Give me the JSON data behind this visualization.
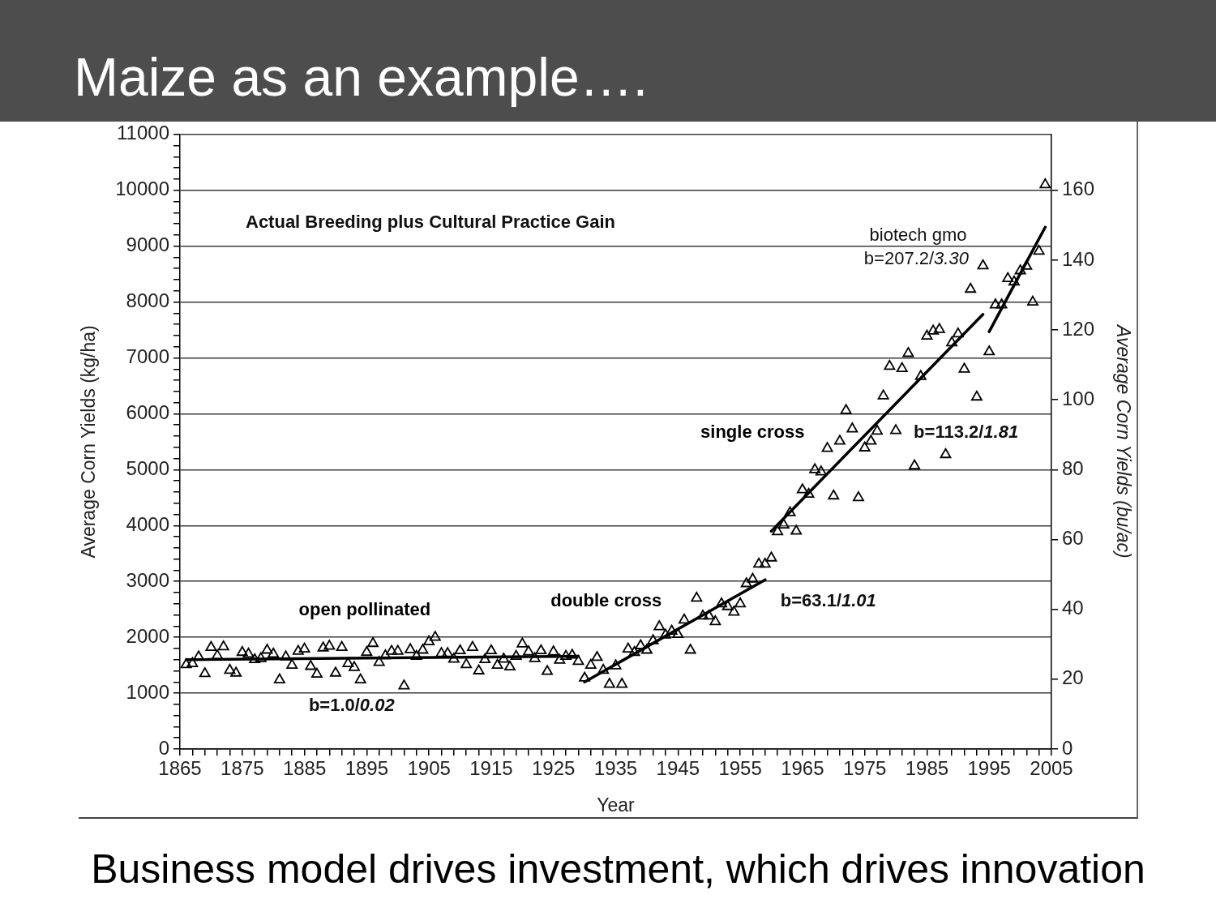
{
  "chart_data": {
    "type": "scatter",
    "title": "Maize as an example….",
    "subtitle": "Actual Breeding plus Cultural Practice Gain",
    "xlabel": "Year",
    "ylabel": "Average Corn Yields (kg/ha)",
    "y2label": "Average Corn Yields (bu/ac)",
    "annotations": [
      "b=1.0/0.02",
      "b=63.1/1.01",
      "b=113.2/1.81",
      "biotech gmo",
      "b=207.2/3.30",
      "Business model drives investment, which drives innovation"
    ],
    "x": [
      1866,
      1867,
      1868,
      1869,
      1870,
      1871,
      1872,
      1873,
      1874,
      1875,
      1876,
      1877,
      1878,
      1879,
      1880,
      1881,
      1882,
      1883,
      1884,
      1885,
      1886,
      1887,
      1888,
      1889,
      1890,
      1891,
      1892,
      1893,
      1894,
      1895,
      1896,
      1897,
      1898,
      1899,
      1900,
      1901,
      1902,
      1903,
      1904,
      1905,
      1906,
      1907,
      1908,
      1909,
      1910,
      1911,
      1912,
      1913,
      1914,
      1915,
      1916,
      1917,
      1918,
      1919,
      1920,
      1921,
      1922,
      1923,
      1924,
      1925,
      1926,
      1927,
      1928,
      1929,
      1930,
      1931,
      1932,
      1933,
      1934,
      1935,
      1936,
      1937,
      1938,
      1939,
      1940,
      1941,
      1942,
      1943,
      1944,
      1945,
      1946,
      1947,
      1948,
      1949,
      1950,
      1951,
      1952,
      1953,
      1954,
      1955,
      1956,
      1957,
      1958,
      1959,
      1960,
      1961,
      1962,
      1963,
      1964,
      1965,
      1966,
      1967,
      1968,
      1969,
      1970,
      1971,
      1972,
      1973,
      1974,
      1975,
      1976,
      1977,
      1978,
      1979,
      1980,
      1981,
      1982,
      1983,
      1984,
      1985,
      1986,
      1987,
      1988,
      1989,
      1990,
      1991,
      1992,
      1993,
      1994,
      1995,
      1996,
      1997,
      1998,
      1999,
      2000,
      2001,
      2002,
      2003,
      2004
    ],
    "series": [
      {
        "color": "#000000",
        "marker": "triangle",
        "values": [
          1510,
          1530,
          1650,
          1350,
          1820,
          1670,
          1830,
          1410,
          1360,
          1730,
          1700,
          1600,
          1620,
          1770,
          1700,
          1240,
          1650,
          1500,
          1750,
          1790,
          1480,
          1340,
          1810,
          1840,
          1360,
          1820,
          1530,
          1460,
          1240,
          1730,
          1890,
          1550,
          1670,
          1750,
          1750,
          1130,
          1780,
          1660,
          1770,
          1920,
          2000,
          1710,
          1710,
          1610,
          1760,
          1510,
          1820,
          1400,
          1600,
          1760,
          1500,
          1610,
          1470,
          1660,
          1880,
          1740,
          1620,
          1760,
          1390,
          1740,
          1590,
          1660,
          1680,
          1570,
          1270,
          1500,
          1640,
          1410,
          1160,
          1490,
          1160,
          1790,
          1730,
          1850,
          1770,
          1940,
          2190,
          2040,
          2110,
          2050,
          2310,
          1770,
          2700,
          2380,
          2380,
          2280,
          2600,
          2550,
          2450,
          2600,
          2960,
          3040,
          3310,
          3310,
          3420,
          3890,
          4010,
          4230,
          3900,
          4640,
          4560,
          5000,
          4960,
          5380,
          4530,
          5510,
          6060,
          5730,
          4500,
          5390,
          5510,
          5690,
          6320,
          6850,
          5700,
          6810,
          7080,
          5070,
          6670,
          7390,
          7480,
          7510,
          5270,
          7270,
          7430,
          6800,
          8230,
          6300,
          8650,
          7110,
          7950,
          7950,
          8420,
          8360,
          8560,
          8640,
          8000,
          8910,
          10100
        ]
      },
      {
        "type": "line",
        "name": "open pollinated",
        "color": "#000000",
        "marker": "none",
        "line_style": "solid",
        "x": [
          1866,
          1929
        ],
        "values": [
          1600,
          1660
        ]
      },
      {
        "type": "line",
        "name": "double cross",
        "color": "#000000",
        "marker": "none",
        "line_style": "solid",
        "x": [
          1930,
          1959
        ],
        "values": [
          1200,
          3030
        ]
      },
      {
        "type": "line",
        "name": "single cross",
        "color": "#000000",
        "marker": "none",
        "line_style": "solid",
        "x": [
          1960,
          1994
        ],
        "values": [
          3900,
          7780
        ]
      },
      {
        "type": "line",
        "color": "#000000",
        "marker": "none",
        "line_style": "solid",
        "x": [
          1995,
          2004
        ],
        "values": [
          7470,
          9340
        ]
      }
    ],
    "xlim": [
      1865,
      2005
    ],
    "xticks": [
      1865,
      {
        "value": 1867,
        "label": null
      },
      {
        "value": 1869,
        "label": null
      },
      {
        "value": 1871,
        "label": null
      },
      {
        "value": 1873,
        "label": null
      },
      1875,
      {
        "value": 1877,
        "label": null
      },
      {
        "value": 1879,
        "label": null
      },
      {
        "value": 1881,
        "label": null
      },
      {
        "value": 1883,
        "label": null
      },
      1885,
      {
        "value": 1887,
        "label": null
      },
      {
        "value": 1889,
        "label": null
      },
      {
        "value": 1891,
        "label": null
      },
      {
        "value": 1893,
        "label": null
      },
      1895,
      {
        "value": 1897,
        "label": null
      },
      {
        "value": 1899,
        "label": null
      },
      {
        "value": 1901,
        "label": null
      },
      {
        "value": 1903,
        "label": null
      },
      1905,
      {
        "value": 1907,
        "label": null
      },
      {
        "value": 1909,
        "label": null
      },
      {
        "value": 1911,
        "label": null
      },
      {
        "value": 1913,
        "label": null
      },
      1915,
      {
        "value": 1917,
        "label": null
      },
      {
        "value": 1919,
        "label": null
      },
      {
        "value": 1921,
        "label": null
      },
      {
        "value": 1923,
        "label": null
      },
      1925,
      {
        "value": 1927,
        "label": null
      },
      {
        "value": 1929,
        "label": null
      },
      {
        "value": 1931,
        "label": null
      },
      {
        "value": 1933,
        "label": null
      },
      1935,
      {
        "value": 1937,
        "label": null
      },
      {
        "value": 1939,
        "label": null
      },
      {
        "value": 1941,
        "label": null
      },
      {
        "value": 1943,
        "label": null
      },
      1945,
      {
        "value": 1947,
        "label": null
      },
      {
        "value": 1949,
        "label": null
      },
      {
        "value": 1951,
        "label": null
      },
      {
        "value": 1953,
        "label": null
      },
      1955,
      {
        "value": 1957,
        "label": null
      },
      {
        "value": 1959,
        "label": null
      },
      {
        "value": 1961,
        "label": null
      },
      {
        "value": 1963,
        "label": null
      },
      1965,
      {
        "value": 1967,
        "label": null
      },
      {
        "value": 1969,
        "label": null
      },
      {
        "value": 1971,
        "label": null
      },
      {
        "value": 1973,
        "label": null
      },
      1975,
      {
        "value": 1977,
        "label": null
      },
      {
        "value": 1979,
        "label": null
      },
      {
        "value": 1981,
        "label": null
      },
      {
        "value": 1983,
        "label": null
      },
      1985,
      {
        "value": 1987,
        "label": null
      },
      {
        "value": 1989,
        "label": null
      },
      {
        "value": 1991,
        "label": null
      },
      {
        "value": 1993,
        "label": null
      },
      1995,
      {
        "value": 1997,
        "label": null
      },
      {
        "value": 1999,
        "label": null
      },
      {
        "value": 2001,
        "label": null
      },
      {
        "value": 2003,
        "label": null
      },
      2005
    ],
    "ylim": [
      0,
      11000
    ],
    "yticks": [
      0,
      {
        "value": 200,
        "label": null
      },
      {
        "value": 400,
        "label": null
      },
      {
        "value": 600,
        "label": null
      },
      {
        "value": 800,
        "label": null
      },
      1000,
      {
        "value": 1200,
        "label": null
      },
      {
        "value": 1400,
        "label": null
      },
      {
        "value": 1600,
        "label": null
      },
      {
        "value": 1800,
        "label": null
      },
      2000,
      {
        "value": 2200,
        "label": null
      },
      {
        "value": 2400,
        "label": null
      },
      {
        "value": 2600,
        "label": null
      },
      {
        "value": 2800,
        "label": null
      },
      3000,
      {
        "value": 3200,
        "label": null
      },
      {
        "value": 3400,
        "label": null
      },
      {
        "value": 3600,
        "label": null
      },
      {
        "value": 3800,
        "label": null
      },
      4000,
      {
        "value": 4200,
        "label": null
      },
      {
        "value": 4400,
        "label": null
      },
      {
        "value": 4600,
        "label": null
      },
      {
        "value": 4800,
        "label": null
      },
      5000,
      {
        "value": 5200,
        "label": null
      },
      {
        "value": 5400,
        "label": null
      },
      {
        "value": 5600,
        "label": null
      },
      {
        "value": 5800,
        "label": null
      },
      6000,
      {
        "value": 6200,
        "label": null
      },
      {
        "value": 6400,
        "label": null
      },
      {
        "value": 6600,
        "label": null
      },
      {
        "value": 6800,
        "label": null
      },
      7000,
      {
        "value": 7200,
        "label": null
      },
      {
        "value": 7400,
        "label": null
      },
      {
        "value": 7600,
        "label": null
      },
      {
        "value": 7800,
        "label": null
      },
      8000,
      {
        "value": 8200,
        "label": null
      },
      {
        "value": 8400,
        "label": null
      },
      {
        "value": 8600,
        "label": null
      },
      {
        "value": 8800,
        "label": null
      },
      9000,
      {
        "value": 9200,
        "label": null
      },
      {
        "value": 9400,
        "label": null
      },
      {
        "value": 9600,
        "label": null
      },
      {
        "value": 9800,
        "label": null
      },
      10000,
      {
        "value": 10200,
        "label": null
      },
      {
        "value": 10400,
        "label": null
      },
      {
        "value": 10600,
        "label": null
      },
      {
        "value": 10800,
        "label": null
      },
      11000
    ],
    "y2lim": [
      0,
      176
    ],
    "y2ticks": [
      0,
      20,
      40,
      60,
      80,
      100,
      120,
      140,
      160
    ],
    "grid": "y"
  }
}
